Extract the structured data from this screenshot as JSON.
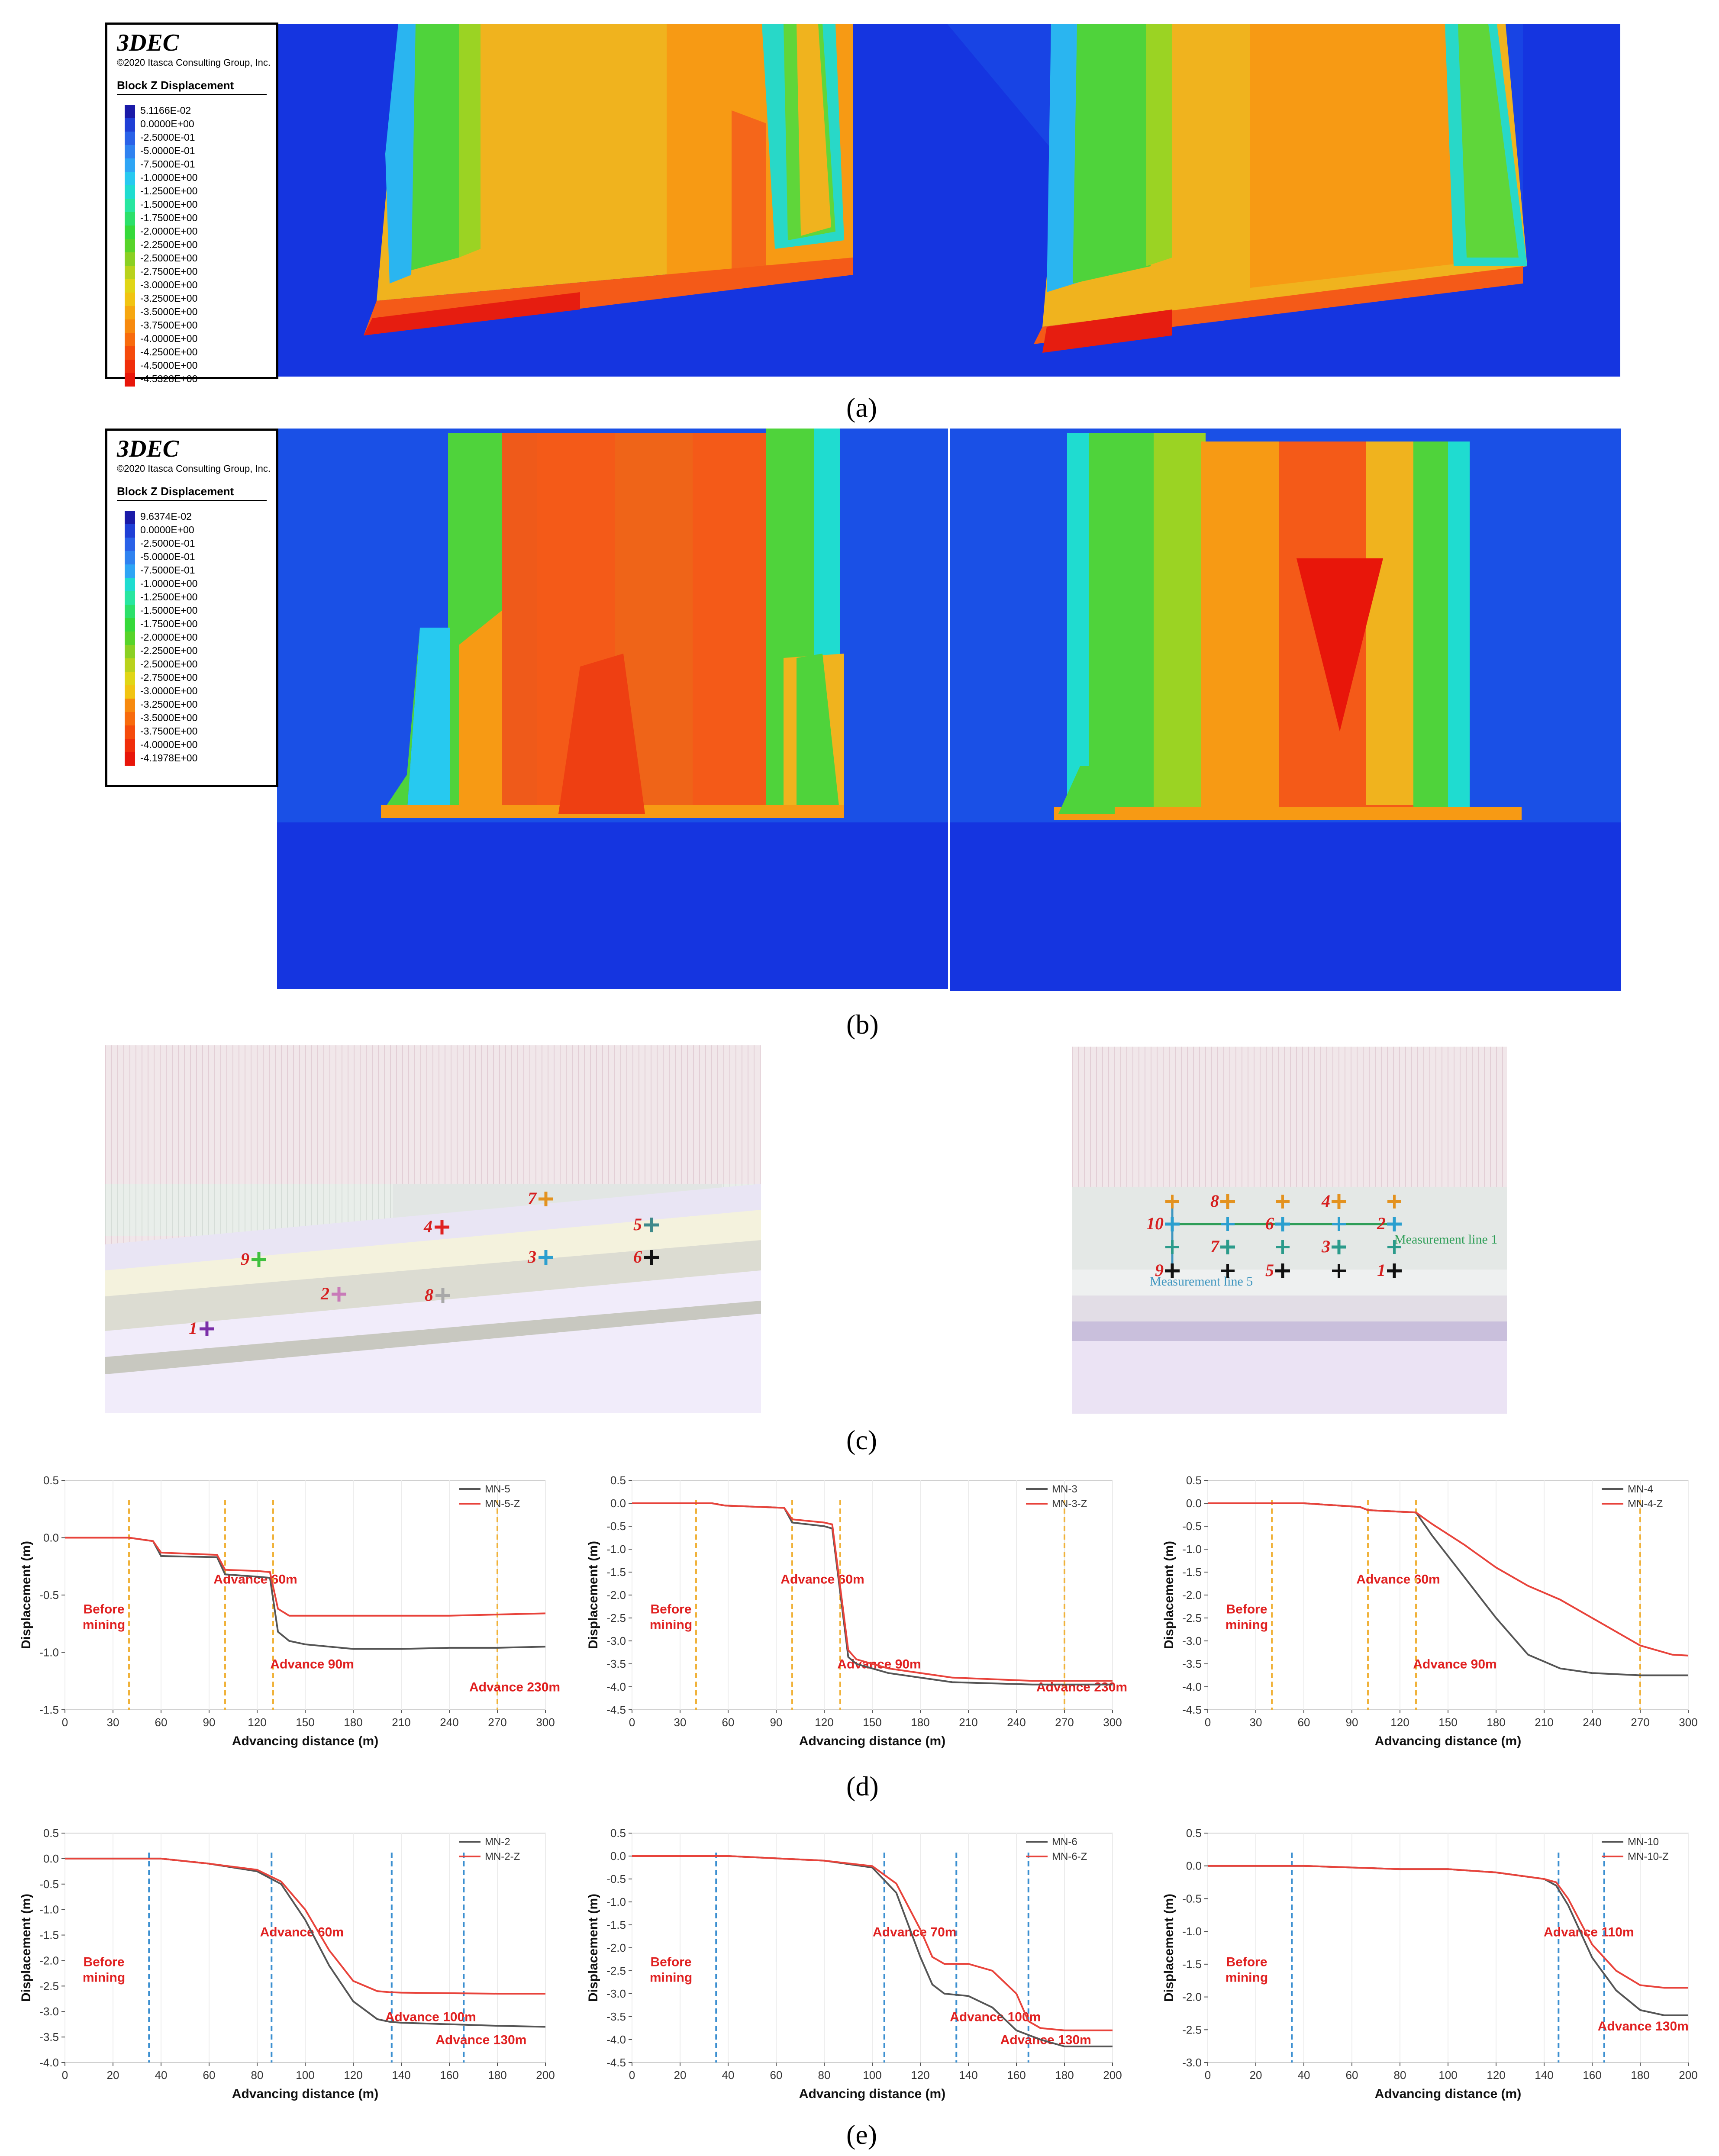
{
  "panels": {
    "a": "(a)",
    "b": "(b)",
    "c": "(c)",
    "d": "(d)",
    "e": "(e)"
  },
  "legend_a": {
    "title": "3DEC",
    "copyright": "©2020 Itasca Consulting Group, Inc.",
    "heading": "Block Z Displacement",
    "entries": [
      "5.1166E-02",
      "0.0000E+00",
      "-2.5000E-01",
      "-5.0000E-01",
      "-7.5000E-01",
      "-1.0000E+00",
      "-1.2500E+00",
      "-1.5000E+00",
      "-1.7500E+00",
      "-2.0000E+00",
      "-2.2500E+00",
      "-2.5000E+00",
      "-2.7500E+00",
      "-3.0000E+00",
      "-3.2500E+00",
      "-3.5000E+00",
      "-3.7500E+00",
      "-4.0000E+00",
      "-4.2500E+00",
      "-4.5000E+00",
      "-4.5328E+00"
    ]
  },
  "legend_b": {
    "title": "3DEC",
    "copyright": "©2020 Itasca Consulting Group, Inc.",
    "heading": "Block Z Displacement",
    "entries": [
      "9.6374E-02",
      "0.0000E+00",
      "-2.5000E-01",
      "-5.0000E-01",
      "-7.5000E-01",
      "-1.0000E+00",
      "-1.2500E+00",
      "-1.5000E+00",
      "-1.7500E+00",
      "-2.0000E+00",
      "-2.2500E+00",
      "-2.5000E+00",
      "-2.7500E+00",
      "-3.0000E+00",
      "-3.2500E+00",
      "-3.5000E+00",
      "-3.7500E+00",
      "-4.0000E+00",
      "-4.1978E+00"
    ]
  },
  "legend_colors": [
    "#1a1aa8",
    "#1f3fd6",
    "#2a62e8",
    "#2f82f0",
    "#2ea5f5",
    "#27c9f0",
    "#1fdcd0",
    "#28e6a0",
    "#2ce06a",
    "#36d93a",
    "#57d42a",
    "#8ad023",
    "#b9d21c",
    "#e0d616",
    "#f1c412",
    "#f6a710",
    "#f78a0e",
    "#f86b0d",
    "#f54b0c",
    "#f02e0b",
    "#e8160a"
  ],
  "layout_c": {
    "left_points": [
      "1",
      "2",
      "3",
      "4",
      "5",
      "6",
      "7",
      "8",
      "9"
    ],
    "right_points": [
      "1",
      "2",
      "3",
      "4",
      "5",
      "6",
      "7",
      "8",
      "9",
      "10"
    ],
    "measurement_line_1": "Measurement line 1",
    "measurement_line_5": "Measurement line 5"
  },
  "chart_data": [
    {
      "type": "line",
      "id": "d1",
      "xlabel": "Advancing distance (m)",
      "ylabel": "Displacement (m)",
      "xlim": [
        0,
        300
      ],
      "ylim": [
        -1.5,
        0.5
      ],
      "xticks": [
        0,
        30,
        60,
        90,
        120,
        150,
        180,
        210,
        240,
        270,
        300
      ],
      "yticks": [
        0.5,
        0.0,
        -0.5,
        -1.0,
        -1.5
      ],
      "legend": [
        "MN-5",
        "MN-5-Z"
      ],
      "series": [
        {
          "name": "MN-5",
          "color": "#555555",
          "x": [
            0,
            40,
            55,
            60,
            95,
            100,
            120,
            128,
            133,
            140,
            150,
            180,
            210,
            240,
            270,
            300
          ],
          "y": [
            0,
            0,
            -0.03,
            -0.16,
            -0.17,
            -0.32,
            -0.34,
            -0.35,
            -0.82,
            -0.9,
            -0.93,
            -0.97,
            -0.97,
            -0.96,
            -0.96,
            -0.95
          ]
        },
        {
          "name": "MN-5-Z",
          "color": "#e8433b",
          "x": [
            0,
            40,
            55,
            60,
            95,
            100,
            120,
            128,
            133,
            140,
            150,
            180,
            210,
            240,
            270,
            300
          ],
          "y": [
            0,
            0,
            -0.03,
            -0.13,
            -0.15,
            -0.28,
            -0.29,
            -0.3,
            -0.62,
            -0.68,
            -0.68,
            -0.68,
            -0.68,
            -0.68,
            -0.67,
            -0.66
          ]
        }
      ],
      "markers": [
        {
          "x": 40,
          "label": "Before mining"
        },
        {
          "x": 100,
          "label": "Advance 60m"
        },
        {
          "x": 130,
          "label": "Advance 90m"
        },
        {
          "x": 270,
          "label": "Advance 230m"
        }
      ]
    },
    {
      "type": "line",
      "id": "d2",
      "xlabel": "Advancing distance (m)",
      "ylabel": "Displacement (m)",
      "xlim": [
        0,
        300
      ],
      "ylim": [
        -4.5,
        0.5
      ],
      "xticks": [
        0,
        30,
        60,
        90,
        120,
        150,
        180,
        210,
        240,
        270,
        300
      ],
      "yticks": [
        0.5,
        0.0,
        -0.5,
        -1.0,
        -1.5,
        -2.0,
        -2.5,
        -3.0,
        -3.5,
        -4.0,
        -4.5
      ],
      "legend": [
        "MN-3",
        "MN-3-Z"
      ],
      "series": [
        {
          "name": "MN-3",
          "color": "#555555",
          "x": [
            0,
            50,
            58,
            95,
            100,
            120,
            125,
            135,
            140,
            160,
            200,
            250,
            300
          ],
          "y": [
            0,
            0,
            -0.05,
            -0.1,
            -0.42,
            -0.5,
            -0.55,
            -3.35,
            -3.5,
            -3.7,
            -3.9,
            -3.95,
            -3.95
          ]
        },
        {
          "name": "MN-3-Z",
          "color": "#e8433b",
          "x": [
            0,
            50,
            58,
            95,
            100,
            120,
            125,
            135,
            140,
            160,
            200,
            250,
            300
          ],
          "y": [
            0,
            0,
            -0.05,
            -0.1,
            -0.35,
            -0.42,
            -0.46,
            -3.2,
            -3.4,
            -3.6,
            -3.8,
            -3.87,
            -3.87
          ]
        }
      ],
      "markers": [
        {
          "x": 40,
          "label": "Before mining"
        },
        {
          "x": 100,
          "label": "Advance 60m"
        },
        {
          "x": 130,
          "label": "Advance 90m"
        },
        {
          "x": 270,
          "label": "Advance 230m"
        }
      ]
    },
    {
      "type": "line",
      "id": "d3",
      "xlabel": "Advancing distance (m)",
      "ylabel": "Displacement (m)",
      "xlim": [
        0,
        300
      ],
      "ylim": [
        -4.5,
        0.5
      ],
      "xticks": [
        0,
        30,
        60,
        90,
        120,
        150,
        180,
        210,
        240,
        270,
        300
      ],
      "yticks": [
        0.5,
        0.0,
        -0.5,
        -1.0,
        -1.5,
        -2.0,
        -2.5,
        -3.0,
        -3.5,
        -4.0,
        -4.5
      ],
      "legend": [
        "MN-4",
        "MN-4-Z"
      ],
      "series": [
        {
          "name": "MN-4",
          "color": "#555555",
          "x": [
            0,
            60,
            95,
            100,
            130,
            140,
            160,
            180,
            200,
            220,
            240,
            270,
            300
          ],
          "y": [
            0,
            0,
            -0.08,
            -0.15,
            -0.2,
            -0.7,
            -1.6,
            -2.5,
            -3.3,
            -3.6,
            -3.7,
            -3.75,
            -3.75
          ]
        },
        {
          "name": "MN-4-Z",
          "color": "#e8433b",
          "x": [
            0,
            60,
            95,
            100,
            130,
            140,
            160,
            180,
            200,
            220,
            240,
            270,
            290,
            300
          ],
          "y": [
            0,
            0,
            -0.08,
            -0.15,
            -0.2,
            -0.45,
            -0.9,
            -1.4,
            -1.8,
            -2.1,
            -2.5,
            -3.1,
            -3.3,
            -3.32
          ]
        }
      ],
      "markers": [
        {
          "x": 40,
          "label": "Before mining"
        },
        {
          "x": 100,
          "label": "Advance 60m"
        },
        {
          "x": 130,
          "label": "Advance 90m"
        },
        {
          "x": 270,
          "label": ""
        }
      ]
    },
    {
      "type": "line",
      "id": "e1",
      "xlabel": "Advancing distance (m)",
      "ylabel": "Displacement (m)",
      "xlim": [
        0,
        200
      ],
      "ylim": [
        -4.0,
        0.5
      ],
      "xticks": [
        0,
        20,
        40,
        60,
        80,
        100,
        120,
        140,
        160,
        180,
        200
      ],
      "yticks": [
        0.5,
        0.0,
        -0.5,
        -1.0,
        -1.5,
        -2.0,
        -2.5,
        -3.0,
        -3.5,
        -4.0
      ],
      "legend": [
        "MN-2",
        "MN-2-Z"
      ],
      "series": [
        {
          "name": "MN-2",
          "color": "#555555",
          "x": [
            0,
            40,
            60,
            80,
            90,
            100,
            110,
            120,
            130,
            135,
            140,
            160,
            180,
            200
          ],
          "y": [
            0,
            0,
            -0.1,
            -0.25,
            -0.5,
            -1.2,
            -2.1,
            -2.8,
            -3.15,
            -3.2,
            -3.22,
            -3.25,
            -3.28,
            -3.3
          ]
        },
        {
          "name": "MN-2-Z",
          "color": "#e8433b",
          "x": [
            0,
            40,
            60,
            80,
            90,
            100,
            110,
            120,
            130,
            135,
            140,
            160,
            180,
            200
          ],
          "y": [
            0,
            0,
            -0.1,
            -0.22,
            -0.45,
            -1.0,
            -1.8,
            -2.4,
            -2.6,
            -2.62,
            -2.63,
            -2.64,
            -2.65,
            -2.65
          ]
        }
      ],
      "markers": [
        {
          "x": 35,
          "label": "Before mining"
        },
        {
          "x": 86,
          "label": "Advance 60m"
        },
        {
          "x": 136,
          "label": "Advance 100m"
        },
        {
          "x": 166,
          "label": "Advance 130m"
        }
      ]
    },
    {
      "type": "line",
      "id": "e2",
      "xlabel": "Advancing distance (m)",
      "ylabel": "Displacement (m)",
      "xlim": [
        0,
        200
      ],
      "ylim": [
        -4.5,
        0.5
      ],
      "xticks": [
        0,
        20,
        40,
        60,
        80,
        100,
        120,
        140,
        160,
        180,
        200
      ],
      "yticks": [
        0.5,
        0.0,
        -0.5,
        -1.0,
        -1.5,
        -2.0,
        -2.5,
        -3.0,
        -3.5,
        -4.0,
        -4.5
      ],
      "legend": [
        "MN-6",
        "MN-6-Z"
      ],
      "series": [
        {
          "name": "MN-6",
          "color": "#555555",
          "x": [
            0,
            40,
            80,
            100,
            110,
            120,
            125,
            130,
            140,
            150,
            160,
            170,
            180,
            200
          ],
          "y": [
            0,
            0,
            -0.1,
            -0.25,
            -0.8,
            -2.2,
            -2.8,
            -3.0,
            -3.05,
            -3.3,
            -3.8,
            -4.0,
            -4.15,
            -4.15
          ]
        },
        {
          "name": "MN-6-Z",
          "color": "#e8433b",
          "x": [
            0,
            40,
            80,
            100,
            110,
            120,
            125,
            130,
            140,
            150,
            160,
            165,
            170,
            180,
            200
          ],
          "y": [
            0,
            0,
            -0.1,
            -0.22,
            -0.6,
            -1.6,
            -2.2,
            -2.35,
            -2.35,
            -2.5,
            -3.0,
            -3.6,
            -3.75,
            -3.8,
            -3.8
          ]
        }
      ],
      "markers": [
        {
          "x": 35,
          "label": "Before mining"
        },
        {
          "x": 105,
          "label": "Advance 70m"
        },
        {
          "x": 135,
          "label": "Advance 100m"
        },
        {
          "x": 165,
          "label": "Advance 130m"
        }
      ]
    },
    {
      "type": "line",
      "id": "e3",
      "xlabel": "Advancing distance (m)",
      "ylabel": "Displacement (m)",
      "xlim": [
        0,
        200
      ],
      "ylim": [
        -3.0,
        0.5
      ],
      "xticks": [
        0,
        20,
        40,
        60,
        80,
        100,
        120,
        140,
        160,
        180,
        200
      ],
      "yticks": [
        0.5,
        0.0,
        -0.5,
        -1.0,
        -1.5,
        -2.0,
        -2.5,
        -3.0
      ],
      "legend": [
        "MN-10",
        "MN-10-Z"
      ],
      "series": [
        {
          "name": "MN-10",
          "color": "#555555",
          "x": [
            0,
            40,
            80,
            100,
            120,
            140,
            145,
            150,
            160,
            170,
            180,
            190,
            200
          ],
          "y": [
            0,
            0,
            -0.05,
            -0.05,
            -0.1,
            -0.2,
            -0.3,
            -0.6,
            -1.4,
            -1.9,
            -2.2,
            -2.28,
            -2.28
          ]
        },
        {
          "name": "MN-10-Z",
          "color": "#e8433b",
          "x": [
            0,
            40,
            80,
            100,
            120,
            140,
            145,
            150,
            160,
            170,
            180,
            190,
            200
          ],
          "y": [
            0,
            0,
            -0.05,
            -0.05,
            -0.1,
            -0.2,
            -0.25,
            -0.5,
            -1.2,
            -1.6,
            -1.82,
            -1.86,
            -1.86
          ]
        }
      ],
      "markers": [
        {
          "x": 35,
          "label": "Before mining"
        },
        {
          "x": 146,
          "label": "Advance 110m"
        },
        {
          "x": 165,
          "label": "Advance 130m"
        }
      ]
    }
  ]
}
